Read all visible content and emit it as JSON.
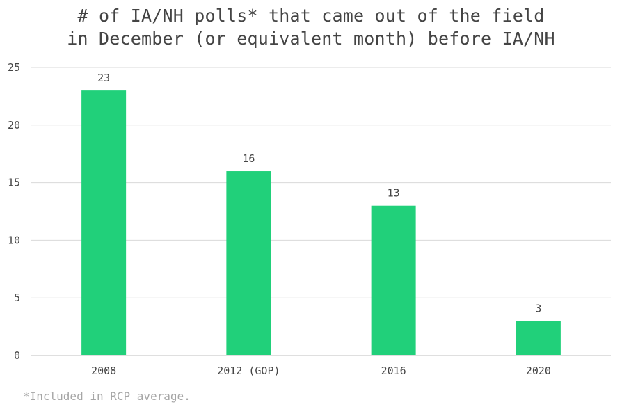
{
  "chart_data": {
    "type": "bar",
    "title_lines": [
      "# of IA/NH polls* that came out of the field",
      "in December (or equivalent month) before IA/NH"
    ],
    "categories": [
      "2008",
      "2012 (GOP)",
      "2016",
      "2020"
    ],
    "values": [
      23,
      16,
      13,
      3
    ],
    "data_labels": [
      "23",
      "16",
      "13",
      "3"
    ],
    "y_ticks": [
      0,
      5,
      10,
      15,
      20,
      25
    ],
    "ylim": [
      0,
      25
    ],
    "xlabel": "",
    "ylabel": "",
    "grid": true,
    "legend": "none",
    "bar_color": "#21d07a",
    "grid_color": "#d9d9d9",
    "axis_color": "#bfbfbf",
    "text_color": "#444444",
    "footnote": "*Included in RCP average."
  }
}
